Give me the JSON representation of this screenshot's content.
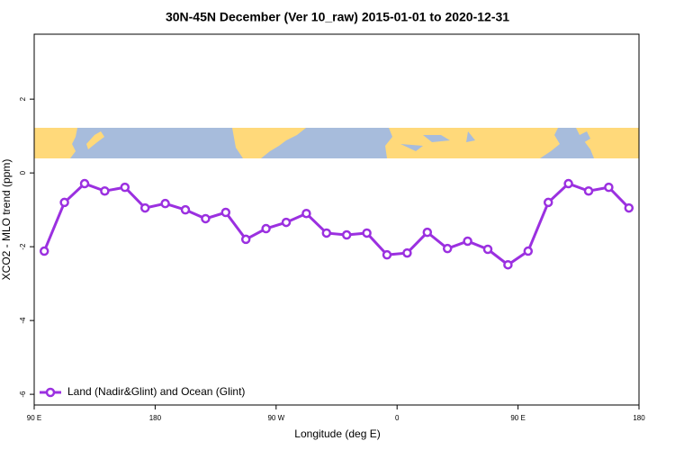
{
  "chart_data": {
    "type": "line",
    "title": "30N-45N December (Ver 10_raw)   2015-01-01 to 2020-12-31",
    "xlabel": "Longitude (deg E)",
    "ylabel": "XCO2 - MLO trend (ppm)",
    "x": [
      97.5,
      112.5,
      127.5,
      142.5,
      157.5,
      172.5,
      187.5,
      202.5,
      217.5,
      232.5,
      247.5,
      262.5,
      277.5,
      292.5,
      307.5,
      322.5,
      337.5,
      352.5,
      367.5,
      382.5,
      397.5,
      412.5,
      427.5,
      442.5,
      457.5,
      472.5,
      487.5,
      502.5,
      517.5,
      532.5
    ],
    "series": [
      {
        "name": "Land (Nadir&Glint) and Ocean (Glint)",
        "color": "#9b30e0",
        "values": [
          -2.12,
          -0.8,
          -0.29,
          -0.49,
          -0.39,
          -0.95,
          -0.83,
          -1.0,
          -1.24,
          -1.07,
          -1.8,
          -1.51,
          -1.34,
          -1.1,
          -1.63,
          -1.68,
          -1.63,
          -2.22,
          -2.17,
          -1.61,
          -2.05,
          -1.85,
          -2.07,
          -2.49,
          -2.12,
          -0.8,
          -0.29,
          -0.49,
          -0.39,
          -0.95
        ]
      }
    ],
    "xlim": [
      90,
      540
    ],
    "xticks": [
      {
        "value": 90,
        "label": "90 E"
      },
      180,
      {
        "value": 270,
        "label": "90 W"
      },
      {
        "value": 360,
        "label": "0"
      },
      {
        "value": 450,
        "label": "90 E"
      },
      {
        "value": 540,
        "label": "180"
      }
    ],
    "ylim": [
      -6.29,
      3.76
    ],
    "yticks": [
      -6,
      -4,
      -2,
      0,
      2
    ],
    "legend": "bottom-left"
  }
}
